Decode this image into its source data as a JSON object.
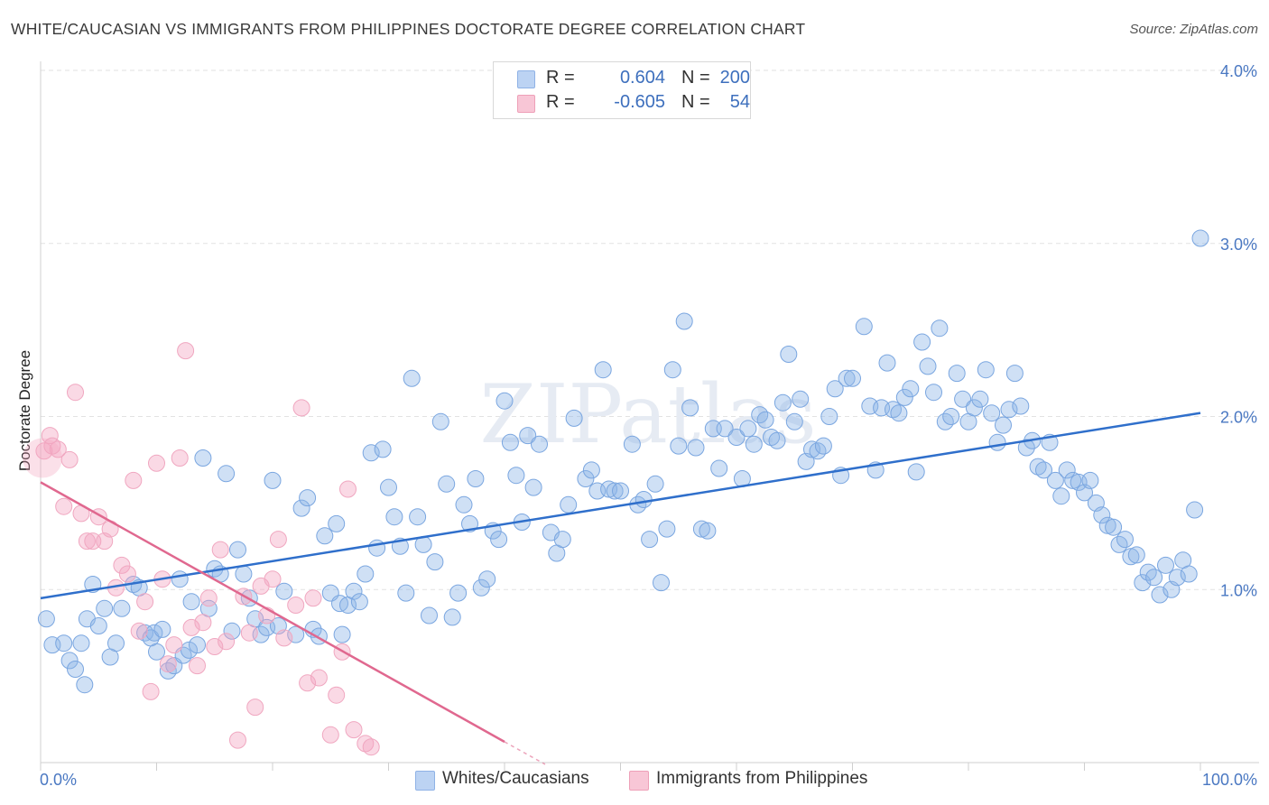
{
  "title": "WHITE/CAUCASIAN VS IMMIGRANTS FROM PHILIPPINES DOCTORATE DEGREE CORRELATION CHART",
  "source": "Source: ZipAtlas.com",
  "watermark": "ZIPatlas",
  "legend": {
    "r_label": "R =",
    "n_label": "N =",
    "series": [
      {
        "r": "0.604",
        "n": "200",
        "color": "#a9c6ef"
      },
      {
        "r": "-0.605",
        "n": "54",
        "color": "#f5b3c8"
      }
    ]
  },
  "bottom_legend": [
    "Whites/Caucasians",
    "Immigrants from Philippines"
  ],
  "chart_data": {
    "type": "scatter",
    "xlabel": "",
    "ylabel": "Doctorate Degree",
    "xlim": [
      0,
      100
    ],
    "ylim": [
      0,
      4.0
    ],
    "x_ticks": [
      "0.0%",
      "100.0%"
    ],
    "y_ticks": [
      "1.0%",
      "2.0%",
      "3.0%",
      "4.0%"
    ],
    "y_tick_values": [
      1,
      2,
      3,
      4
    ],
    "grid": true,
    "series": [
      {
        "name": "Whites/Caucasians",
        "color": "#7aa6e0",
        "line_color": "#2f6fcb",
        "trend": [
          [
            0,
            0.95
          ],
          [
            100,
            2.02
          ]
        ],
        "points": [
          [
            0.5,
            0.83
          ],
          [
            1,
            0.68
          ],
          [
            2,
            0.69
          ],
          [
            2.5,
            0.59
          ],
          [
            3,
            0.54
          ],
          [
            3.5,
            0.69
          ],
          [
            3.8,
            0.45
          ],
          [
            4,
            0.83
          ],
          [
            4.5,
            1.03
          ],
          [
            5,
            0.79
          ],
          [
            5.5,
            0.89
          ],
          [
            6,
            0.61
          ],
          [
            6.5,
            0.69
          ],
          [
            7,
            0.89
          ],
          [
            8,
            1.03
          ],
          [
            8.5,
            1.01
          ],
          [
            9,
            0.75
          ],
          [
            9.5,
            0.72
          ],
          [
            9.8,
            0.75
          ],
          [
            10,
            0.64
          ],
          [
            10.5,
            0.77
          ],
          [
            11,
            0.53
          ],
          [
            11.5,
            0.56
          ],
          [
            12,
            1.06
          ],
          [
            12.3,
            0.62
          ],
          [
            12.8,
            0.65
          ],
          [
            13,
            0.93
          ],
          [
            13.5,
            0.68
          ],
          [
            14,
            1.76
          ],
          [
            14.5,
            0.89
          ],
          [
            15,
            1.12
          ],
          [
            15.5,
            1.09
          ],
          [
            16,
            1.67
          ],
          [
            16.5,
            0.76
          ],
          [
            17,
            1.23
          ],
          [
            17.5,
            1.09
          ],
          [
            18,
            0.95
          ],
          [
            18.5,
            0.83
          ],
          [
            19,
            0.74
          ],
          [
            19.5,
            0.78
          ],
          [
            20,
            1.63
          ],
          [
            20.5,
            0.79
          ],
          [
            21,
            0.99
          ],
          [
            22,
            0.74
          ],
          [
            22.5,
            1.47
          ],
          [
            23,
            1.53
          ],
          [
            23.5,
            0.77
          ],
          [
            24,
            0.73
          ],
          [
            24.5,
            1.31
          ],
          [
            25,
            0.98
          ],
          [
            25.5,
            1.38
          ],
          [
            25.8,
            0.92
          ],
          [
            26,
            0.74
          ],
          [
            26.5,
            0.91
          ],
          [
            27,
            0.99
          ],
          [
            27.5,
            0.93
          ],
          [
            28,
            1.09
          ],
          [
            28.5,
            1.79
          ],
          [
            29,
            1.24
          ],
          [
            29.5,
            1.81
          ],
          [
            30,
            1.59
          ],
          [
            30.5,
            1.42
          ],
          [
            31,
            1.25
          ],
          [
            31.5,
            0.98
          ],
          [
            32,
            2.22
          ],
          [
            32.5,
            1.42
          ],
          [
            33,
            1.26
          ],
          [
            33.5,
            0.85
          ],
          [
            34,
            1.16
          ],
          [
            34.5,
            1.97
          ],
          [
            35,
            1.61
          ],
          [
            35.5,
            0.84
          ],
          [
            36,
            0.98
          ],
          [
            36.5,
            1.49
          ],
          [
            37,
            1.38
          ],
          [
            37.5,
            1.64
          ],
          [
            38,
            1.01
          ],
          [
            38.5,
            1.06
          ],
          [
            39,
            1.34
          ],
          [
            39.5,
            1.29
          ],
          [
            40,
            2.09
          ],
          [
            40.5,
            1.85
          ],
          [
            41,
            1.66
          ],
          [
            41.5,
            1.39
          ],
          [
            42,
            1.89
          ],
          [
            42.5,
            1.59
          ],
          [
            43,
            1.84
          ],
          [
            44,
            1.33
          ],
          [
            44.5,
            1.21
          ],
          [
            45,
            1.29
          ],
          [
            45.5,
            1.49
          ],
          [
            46,
            1.99
          ],
          [
            47,
            1.64
          ],
          [
            47.5,
            1.69
          ],
          [
            48,
            1.57
          ],
          [
            48.5,
            2.27
          ],
          [
            49,
            1.58
          ],
          [
            49.5,
            1.57
          ],
          [
            50,
            1.57
          ],
          [
            51,
            1.84
          ],
          [
            51.5,
            1.49
          ],
          [
            52,
            1.52
          ],
          [
            52.5,
            1.29
          ],
          [
            53,
            1.61
          ],
          [
            53.5,
            1.04
          ],
          [
            54,
            1.35
          ],
          [
            54.5,
            2.27
          ],
          [
            55,
            1.83
          ],
          [
            55.5,
            2.55
          ],
          [
            56,
            2.05
          ],
          [
            56.5,
            1.82
          ],
          [
            57,
            1.35
          ],
          [
            57.5,
            1.34
          ],
          [
            58,
            1.93
          ],
          [
            58.5,
            1.7
          ],
          [
            59,
            1.93
          ],
          [
            60,
            1.88
          ],
          [
            60.5,
            1.64
          ],
          [
            61,
            1.93
          ],
          [
            61.5,
            1.84
          ],
          [
            62,
            2.01
          ],
          [
            62.5,
            1.98
          ],
          [
            63,
            1.88
          ],
          [
            63.5,
            1.86
          ],
          [
            64,
            2.08
          ],
          [
            64.5,
            2.36
          ],
          [
            65,
            1.97
          ],
          [
            65.5,
            2.1
          ],
          [
            66,
            1.74
          ],
          [
            66.5,
            1.81
          ],
          [
            67,
            1.8
          ],
          [
            67.5,
            1.83
          ],
          [
            68,
            2.0
          ],
          [
            68.5,
            2.16
          ],
          [
            69,
            1.66
          ],
          [
            69.5,
            2.22
          ],
          [
            70,
            2.22
          ],
          [
            71,
            2.52
          ],
          [
            71.5,
            2.06
          ],
          [
            72,
            1.69
          ],
          [
            72.5,
            2.05
          ],
          [
            73,
            2.31
          ],
          [
            73.5,
            2.04
          ],
          [
            74,
            2.02
          ],
          [
            74.5,
            2.11
          ],
          [
            75,
            2.16
          ],
          [
            75.5,
            1.68
          ],
          [
            76,
            2.43
          ],
          [
            76.5,
            2.29
          ],
          [
            77,
            2.14
          ],
          [
            77.5,
            2.51
          ],
          [
            78,
            1.97
          ],
          [
            78.5,
            2.0
          ],
          [
            79,
            2.25
          ],
          [
            79.5,
            2.1
          ],
          [
            80,
            1.97
          ],
          [
            80.5,
            2.05
          ],
          [
            81,
            2.1
          ],
          [
            81.5,
            2.27
          ],
          [
            82,
            2.02
          ],
          [
            82.5,
            1.85
          ],
          [
            83,
            1.95
          ],
          [
            83.5,
            2.04
          ],
          [
            84,
            2.25
          ],
          [
            84.5,
            2.06
          ],
          [
            85,
            1.82
          ],
          [
            85.5,
            1.86
          ],
          [
            86,
            1.71
          ],
          [
            86.5,
            1.69
          ],
          [
            87,
            1.85
          ],
          [
            87.5,
            1.63
          ],
          [
            88,
            1.54
          ],
          [
            88.5,
            1.69
          ],
          [
            89,
            1.63
          ],
          [
            89.5,
            1.62
          ],
          [
            90,
            1.56
          ],
          [
            90.5,
            1.63
          ],
          [
            91,
            1.5
          ],
          [
            91.5,
            1.43
          ],
          [
            92,
            1.37
          ],
          [
            92.5,
            1.36
          ],
          [
            93,
            1.26
          ],
          [
            93.5,
            1.29
          ],
          [
            94,
            1.19
          ],
          [
            94.5,
            1.2
          ],
          [
            95,
            1.04
          ],
          [
            95.5,
            1.1
          ],
          [
            96,
            1.07
          ],
          [
            96.5,
            0.97
          ],
          [
            97,
            1.14
          ],
          [
            97.5,
            1.0
          ],
          [
            98,
            1.07
          ],
          [
            98.5,
            1.17
          ],
          [
            99,
            1.09
          ],
          [
            99.5,
            1.46
          ],
          [
            100,
            3.03
          ]
        ]
      },
      {
        "name": "Immigrants from Philippines",
        "color": "#f0a7c0",
        "line_color": "#e0688f",
        "trend": [
          [
            0,
            1.62
          ],
          [
            40,
            0.12
          ]
        ],
        "trend_dashed": [
          [
            40,
            0.12
          ],
          [
            43.5,
            -0.01
          ]
        ],
        "points": [
          [
            0.3,
            1.8
          ],
          [
            0.8,
            1.89
          ],
          [
            1,
            1.83
          ],
          [
            1.5,
            1.81
          ],
          [
            2,
            1.48
          ],
          [
            2.5,
            1.75
          ],
          [
            3,
            2.14
          ],
          [
            3.5,
            1.44
          ],
          [
            4,
            1.28
          ],
          [
            4.5,
            1.28
          ],
          [
            5,
            1.42
          ],
          [
            5.5,
            1.28
          ],
          [
            6,
            1.35
          ],
          [
            6.5,
            1.01
          ],
          [
            7,
            1.14
          ],
          [
            7.5,
            1.09
          ],
          [
            8,
            1.63
          ],
          [
            8.5,
            0.76
          ],
          [
            9,
            0.93
          ],
          [
            9.5,
            0.41
          ],
          [
            10,
            1.73
          ],
          [
            10.5,
            1.06
          ],
          [
            11,
            0.57
          ],
          [
            11.5,
            0.68
          ],
          [
            12,
            1.76
          ],
          [
            12.5,
            2.38
          ],
          [
            13,
            0.78
          ],
          [
            13.5,
            0.56
          ],
          [
            14,
            0.81
          ],
          [
            14.5,
            0.95
          ],
          [
            15,
            0.67
          ],
          [
            15.5,
            1.23
          ],
          [
            16,
            0.7
          ],
          [
            17,
            0.13
          ],
          [
            17.5,
            0.96
          ],
          [
            18,
            0.75
          ],
          [
            18.5,
            0.32
          ],
          [
            19,
            1.02
          ],
          [
            19.5,
            0.85
          ],
          [
            20,
            1.06
          ],
          [
            20.5,
            1.29
          ],
          [
            21,
            0.72
          ],
          [
            22,
            0.91
          ],
          [
            22.5,
            2.05
          ],
          [
            23,
            0.46
          ],
          [
            23.5,
            0.95
          ],
          [
            24,
            0.49
          ],
          [
            25,
            0.16
          ],
          [
            25.5,
            0.39
          ],
          [
            26,
            0.64
          ],
          [
            26.5,
            1.58
          ],
          [
            27,
            0.19
          ],
          [
            28,
            0.11
          ],
          [
            28.5,
            0.09
          ]
        ]
      }
    ]
  }
}
